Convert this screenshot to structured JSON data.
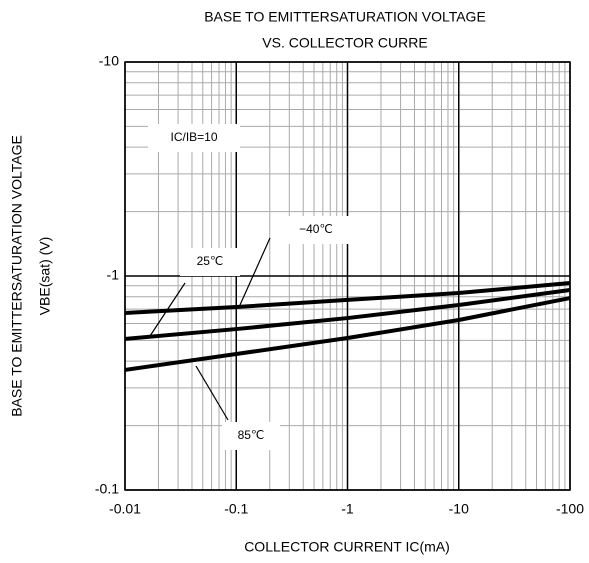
{
  "chart_data": {
    "type": "line",
    "title": [
      "BASE TO EMITTERSATURATION VOLTAGE",
      "VS. COLLECTOR CURRE"
    ],
    "x_label": "COLLECTOR CURRENT  IC(mA)",
    "y_label": [
      "BASE TO EMITTERSATURATION VOLTAGE",
      "VBE(sat)  (V)"
    ],
    "annotation": "IC/IB=10",
    "x": [
      -0.01,
      -0.1,
      -1,
      -10,
      -100
    ],
    "series": [
      {
        "name": "−40℃",
        "color": "#000000",
        "values": [
          -0.672,
          -0.716,
          -0.773,
          -0.833,
          -0.927
        ]
      },
      {
        "name": "25℃",
        "color": "#000000",
        "values": [
          -0.508,
          -0.565,
          -0.636,
          -0.732,
          -0.86
        ]
      },
      {
        "name": "85℃",
        "color": "#000000",
        "values": [
          -0.364,
          -0.432,
          -0.513,
          -0.623,
          -0.789
        ]
      }
    ],
    "x_log": true,
    "y_log": true,
    "xlim": [
      -0.01,
      -100
    ],
    "ylim": [
      -0.1,
      -10
    ],
    "xticks": [
      -0.01,
      -0.1,
      -1,
      -10,
      -100
    ],
    "yticks": [
      -0.1,
      -1,
      -10
    ],
    "x_minor_ticks": [
      -0.02,
      -0.03,
      -0.04,
      -0.05,
      -0.06,
      -0.07,
      -0.08,
      -0.09,
      -0.2,
      -0.3,
      -0.4,
      -0.5,
      -0.6,
      -0.7,
      -0.8,
      -0.9,
      -2,
      -3,
      -4,
      -5,
      -6,
      -7,
      -8,
      -9,
      -20,
      -30,
      -40,
      -50,
      -60,
      -70,
      -80,
      -90
    ],
    "y_minor_ticks": [
      -0.2,
      -0.3,
      -0.4,
      -0.5,
      -0.6,
      -0.7,
      -0.8,
      -0.9,
      -2,
      -3,
      -4,
      -5,
      -6,
      -7,
      -8,
      -9
    ],
    "grid": true
  }
}
